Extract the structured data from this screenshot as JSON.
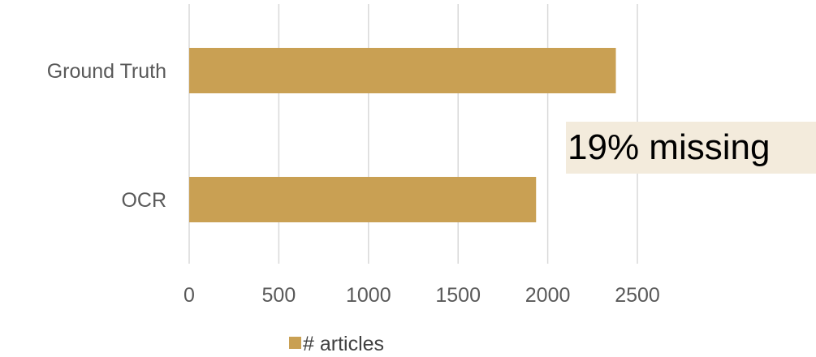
{
  "chart_data": {
    "type": "bar",
    "orientation": "horizontal",
    "categories": [
      "Ground Truth",
      "OCR"
    ],
    "series": [
      {
        "name": "# articles",
        "values": [
          2380,
          1935
        ],
        "color": "#c9a053"
      }
    ],
    "xlim": [
      0,
      2500
    ],
    "xticks": [
      "0",
      "500",
      "1000",
      "1500",
      "2000",
      "2500"
    ],
    "grid": true,
    "legend_position": "bottom",
    "annotation": "19% missing"
  },
  "colors": {
    "bar": "#c9a053",
    "grid": "#d9d9d9",
    "annotation_bg": "#f3ebdc",
    "text": "#595959"
  }
}
